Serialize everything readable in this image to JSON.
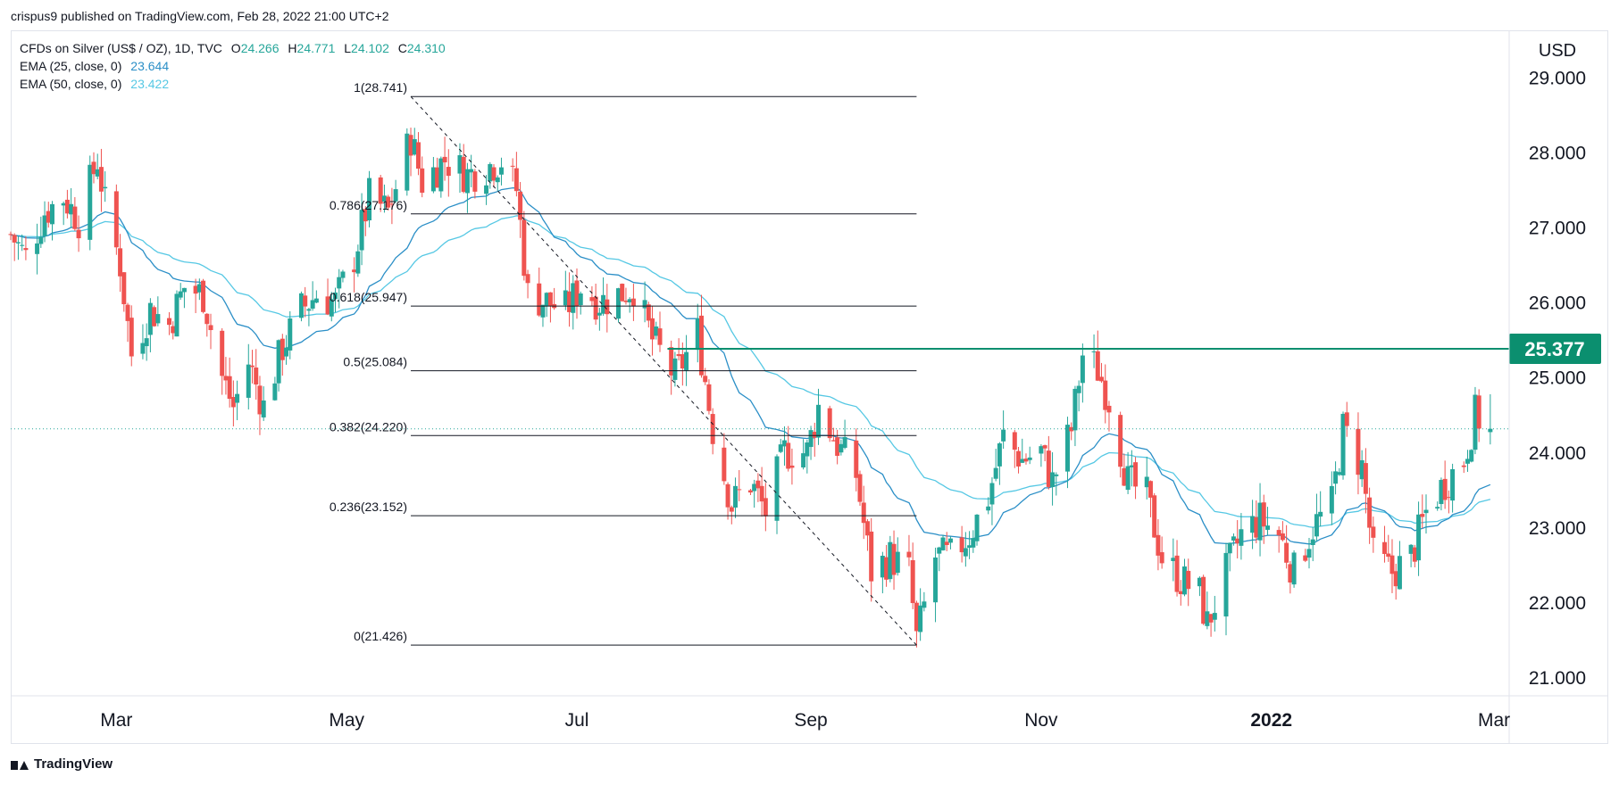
{
  "header": {
    "credit": "crispus9 published on TradingView.com, Feb 28, 2022 21:00 UTC+2"
  },
  "legend": {
    "symbol": "CFDs on Silver (US$ / OZ), 1D, TVC",
    "ohlc": {
      "o_label": "O",
      "o": "24.266",
      "h_label": "H",
      "h": "24.771",
      "l_label": "L",
      "l": "24.102",
      "c_label": "C",
      "c": "24.310"
    },
    "ema25": {
      "label": "EMA (25, close, 0)",
      "value": "23.644"
    },
    "ema50": {
      "label": "EMA (50, close, 0)",
      "value": "23.422"
    }
  },
  "footer": {
    "brand": "TradingView"
  },
  "colors": {
    "up": "#26a69a",
    "down": "#ef5350",
    "ema25": "#2b8fc7",
    "ema50": "#56c8e4",
    "level": "#0b8f6f",
    "fib": "#131722",
    "grid_text": "#131722",
    "last_price_dots": "#26a69a"
  },
  "chart_data": {
    "type": "candlestick",
    "currency_label": "USD",
    "ylim": [
      20.75,
      29.6
    ],
    "y_ticks": [
      "21.000",
      "22.000",
      "23.000",
      "24.000",
      "25.000",
      "26.000",
      "27.000",
      "28.000",
      "29.000"
    ],
    "x_range": [
      "2021-02-01",
      "2022-03-05"
    ],
    "x_ticks": [
      {
        "label": "Mar",
        "date": "2021-03-01",
        "bold": false
      },
      {
        "label": "May",
        "date": "2021-05-01",
        "bold": false
      },
      {
        "label": "Jul",
        "date": "2021-07-01",
        "bold": false
      },
      {
        "label": "Sep",
        "date": "2021-09-01",
        "bold": false
      },
      {
        "label": "Nov",
        "date": "2021-11-01",
        "bold": false
      },
      {
        "label": "2022",
        "date": "2022-01-01",
        "bold": true
      },
      {
        "label": "Mar",
        "date": "2022-03-01",
        "bold": false
      }
    ],
    "horizontal_level": {
      "value": 25.377,
      "label": "25.377",
      "start": "2021-07-25"
    },
    "last_price": 24.31,
    "fib_retracement": {
      "start": "2021-05-18",
      "end": "2021-09-29",
      "trend_line": {
        "from": [
          "2021-05-18",
          28.741
        ],
        "to": [
          "2021-09-29",
          21.426
        ]
      },
      "levels": [
        {
          "ratio": "1",
          "value": "28.741",
          "label": "1(28.741)"
        },
        {
          "ratio": "0.786",
          "value": "27.176",
          "label": "0.786(27.176)"
        },
        {
          "ratio": "0.618",
          "value": "25.947",
          "label": "0.618(25.947)"
        },
        {
          "ratio": "0.5",
          "value": "25.084",
          "label": "0.5(25.084)"
        },
        {
          "ratio": "0.382",
          "value": "24.220",
          "label": "0.382(24.220)"
        },
        {
          "ratio": "0.236",
          "value": "23.152",
          "label": "0.236(23.152)"
        },
        {
          "ratio": "0",
          "value": "21.426",
          "label": "0(21.426)"
        }
      ]
    },
    "price_path": [
      [
        "2021-02-01",
        26.9
      ],
      [
        "2021-02-05",
        26.6
      ],
      [
        "2021-02-10",
        27.2
      ],
      [
        "2021-02-15",
        27.4
      ],
      [
        "2021-02-19",
        27.1
      ],
      [
        "2021-02-24",
        27.9
      ],
      [
        "2021-02-26",
        27.3
      ],
      [
        "2021-03-02",
        26.5
      ],
      [
        "2021-03-05",
        25.3
      ],
      [
        "2021-03-10",
        25.9
      ],
      [
        "2021-03-15",
        25.7
      ],
      [
        "2021-03-19",
        26.2
      ],
      [
        "2021-03-24",
        26.1
      ],
      [
        "2021-03-29",
        25.0
      ],
      [
        "2021-04-01",
        24.6
      ],
      [
        "2021-04-05",
        25.2
      ],
      [
        "2021-04-09",
        24.6
      ],
      [
        "2021-04-14",
        25.4
      ],
      [
        "2021-04-19",
        25.9
      ],
      [
        "2021-04-23",
        26.1
      ],
      [
        "2021-04-28",
        26.0
      ],
      [
        "2021-05-03",
        26.6
      ],
      [
        "2021-05-07",
        27.4
      ],
      [
        "2021-05-12",
        27.2
      ],
      [
        "2021-05-18",
        28.2
      ],
      [
        "2021-05-21",
        27.6
      ],
      [
        "2021-05-27",
        27.9
      ],
      [
        "2021-06-02",
        27.7
      ],
      [
        "2021-06-07",
        27.8
      ],
      [
        "2021-06-11",
        27.9
      ],
      [
        "2021-06-15",
        27.5
      ],
      [
        "2021-06-18",
        26.1
      ],
      [
        "2021-06-23",
        26.0
      ],
      [
        "2021-06-28",
        25.9
      ],
      [
        "2021-07-02",
        26.2
      ],
      [
        "2021-07-07",
        26.0
      ],
      [
        "2021-07-12",
        26.1
      ],
      [
        "2021-07-16",
        26.2
      ],
      [
        "2021-07-21",
        25.5
      ],
      [
        "2021-07-27",
        25.0
      ],
      [
        "2021-08-02",
        25.6
      ],
      [
        "2021-08-06",
        24.3
      ],
      [
        "2021-08-11",
        23.3
      ],
      [
        "2021-08-16",
        23.6
      ],
      [
        "2021-08-20",
        23.2
      ],
      [
        "2021-08-25",
        24.0
      ],
      [
        "2021-08-31",
        24.0
      ],
      [
        "2021-09-03",
        24.6
      ],
      [
        "2021-09-08",
        24.1
      ],
      [
        "2021-09-13",
        23.7
      ],
      [
        "2021-09-17",
        22.4
      ],
      [
        "2021-09-22",
        22.6
      ],
      [
        "2021-09-27",
        22.4
      ],
      [
        "2021-09-29",
        21.5
      ],
      [
        "2021-10-04",
        22.6
      ],
      [
        "2021-10-08",
        22.6
      ],
      [
        "2021-10-13",
        22.9
      ],
      [
        "2021-10-18",
        23.4
      ],
      [
        "2021-10-22",
        24.2
      ],
      [
        "2021-10-27",
        23.9
      ],
      [
        "2021-11-01",
        24.0
      ],
      [
        "2021-11-04",
        23.6
      ],
      [
        "2021-11-09",
        24.3
      ],
      [
        "2021-11-12",
        25.3
      ],
      [
        "2021-11-16",
        25.1
      ],
      [
        "2021-11-19",
        24.7
      ],
      [
        "2021-11-24",
        23.6
      ],
      [
        "2021-11-29",
        23.4
      ],
      [
        "2021-12-03",
        22.6
      ],
      [
        "2021-12-08",
        22.3
      ],
      [
        "2021-12-13",
        22.1
      ],
      [
        "2021-12-15",
        21.7
      ],
      [
        "2021-12-20",
        22.4
      ],
      [
        "2021-12-24",
        22.9
      ],
      [
        "2021-12-29",
        23.1
      ],
      [
        "2022-01-03",
        22.9
      ],
      [
        "2022-01-07",
        22.4
      ],
      [
        "2022-01-12",
        23.0
      ],
      [
        "2022-01-17",
        23.3
      ],
      [
        "2022-01-20",
        24.3
      ],
      [
        "2022-01-25",
        23.8
      ],
      [
        "2022-01-28",
        22.6
      ],
      [
        "2022-02-02",
        22.4
      ],
      [
        "2022-02-07",
        22.6
      ],
      [
        "2022-02-11",
        23.2
      ],
      [
        "2022-02-16",
        23.6
      ],
      [
        "2022-02-21",
        23.9
      ],
      [
        "2022-02-24",
        24.5
      ],
      [
        "2022-02-28",
        24.31
      ]
    ]
  }
}
